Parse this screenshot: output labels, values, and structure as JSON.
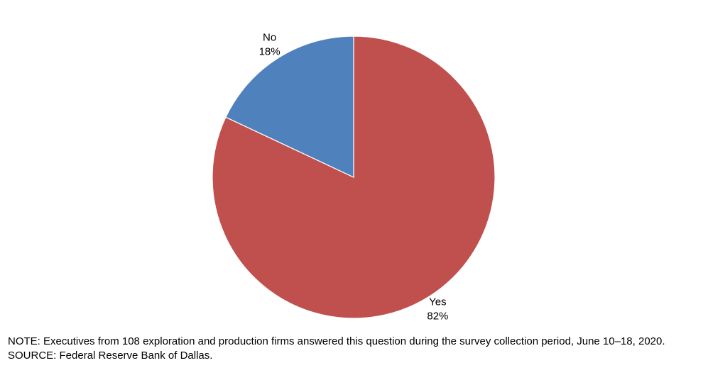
{
  "chart_data": {
    "type": "pie",
    "title": "",
    "slices": [
      {
        "label": "Yes",
        "value": 82,
        "value_label": "82%",
        "color": "#C0504D"
      },
      {
        "label": "No",
        "value": 18,
        "value_label": "18%",
        "color": "#4F81BD"
      }
    ],
    "start_angle_deg": 0,
    "direction": "clockwise",
    "slice_border_color": "#ffffff",
    "legend": "none"
  },
  "notes": {
    "note": "NOTE: Executives from 108 exploration and production firms answered this question during the survey collection period, June 10–18, 2020.",
    "source": "SOURCE: Federal Reserve Bank of Dallas."
  }
}
